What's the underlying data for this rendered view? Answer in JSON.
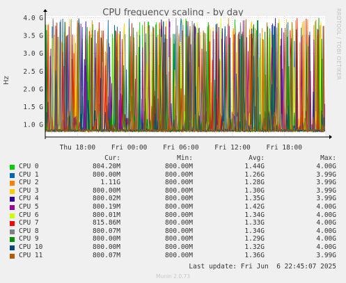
{
  "chart_data": {
    "type": "line",
    "title": "CPU frequency scaling - by day",
    "ylabel": "Hz",
    "y_ticks": [
      "1.0 G",
      "1.5 G",
      "2.0 G",
      "2.5 G",
      "3.0 G",
      "3.5 G",
      "4.0 G"
    ],
    "y_tick_values": [
      1.0,
      1.5,
      2.0,
      2.5,
      3.0,
      3.5,
      4.0
    ],
    "ylim": [
      0.65,
      4.05
    ],
    "y_unit": "GHz",
    "x_ticks": [
      "Thu 18:00",
      "Fri 00:00",
      "Fri 06:00",
      "Fri 12:00",
      "Fri 18:00"
    ],
    "x_tick_hours": [
      18,
      24,
      30,
      36,
      42
    ],
    "x_start_hour": 14.25,
    "x_end_hour": 46.75,
    "grid": true,
    "series": [
      {
        "name": "CPU 0",
        "color": "#00cc00",
        "cur": "804.20M",
        "min": "800.00M",
        "avg": "1.44G",
        "max": "4.00G"
      },
      {
        "name": "CPU 1",
        "color": "#0066b3",
        "cur": "800.00M",
        "min": "800.00M",
        "avg": "1.26G",
        "max": "3.99G"
      },
      {
        "name": "CPU 2",
        "color": "#ff8000",
        "cur": "1.11G",
        "min": "800.00M",
        "avg": "1.28G",
        "max": "3.99G"
      },
      {
        "name": "CPU 3",
        "color": "#ffcc00",
        "cur": "800.00M",
        "min": "800.00M",
        "avg": "1.30G",
        "max": "3.99G"
      },
      {
        "name": "CPU 4",
        "color": "#330099",
        "cur": "800.02M",
        "min": "800.00M",
        "avg": "1.35G",
        "max": "3.99G"
      },
      {
        "name": "CPU 5",
        "color": "#990099",
        "cur": "800.19M",
        "min": "800.00M",
        "avg": "1.42G",
        "max": "4.00G"
      },
      {
        "name": "CPU 6",
        "color": "#ccff00",
        "cur": "800.01M",
        "min": "800.00M",
        "avg": "1.34G",
        "max": "4.00G"
      },
      {
        "name": "CPU 7",
        "color": "#ff0000",
        "cur": "815.86M",
        "min": "800.00M",
        "avg": "1.33G",
        "max": "4.00G"
      },
      {
        "name": "CPU 8",
        "color": "#808080",
        "cur": "800.07M",
        "min": "800.00M",
        "avg": "1.34G",
        "max": "4.00G"
      },
      {
        "name": "CPU 9",
        "color": "#008f00",
        "cur": "800.00M",
        "min": "800.00M",
        "avg": "1.29G",
        "max": "4.00G"
      },
      {
        "name": "CPU 10",
        "color": "#00487d",
        "cur": "800.00M",
        "min": "800.00M",
        "avg": "1.32G",
        "max": "4.00G"
      },
      {
        "name": "CPU 11",
        "color": "#b35a00",
        "cur": "800.07M",
        "min": "800.00M",
        "avg": "1.36G",
        "max": "3.99G"
      }
    ]
  },
  "legend_headers": {
    "cur": "Cur:",
    "min": "Min:",
    "avg": "Avg:",
    "max": "Max:"
  },
  "watermark": "RRDTOOL / TOBI OETIKER",
  "last_update": "Last update: Fri Jun  6 22:45:07 2025",
  "version": "Munin 2.0.73"
}
